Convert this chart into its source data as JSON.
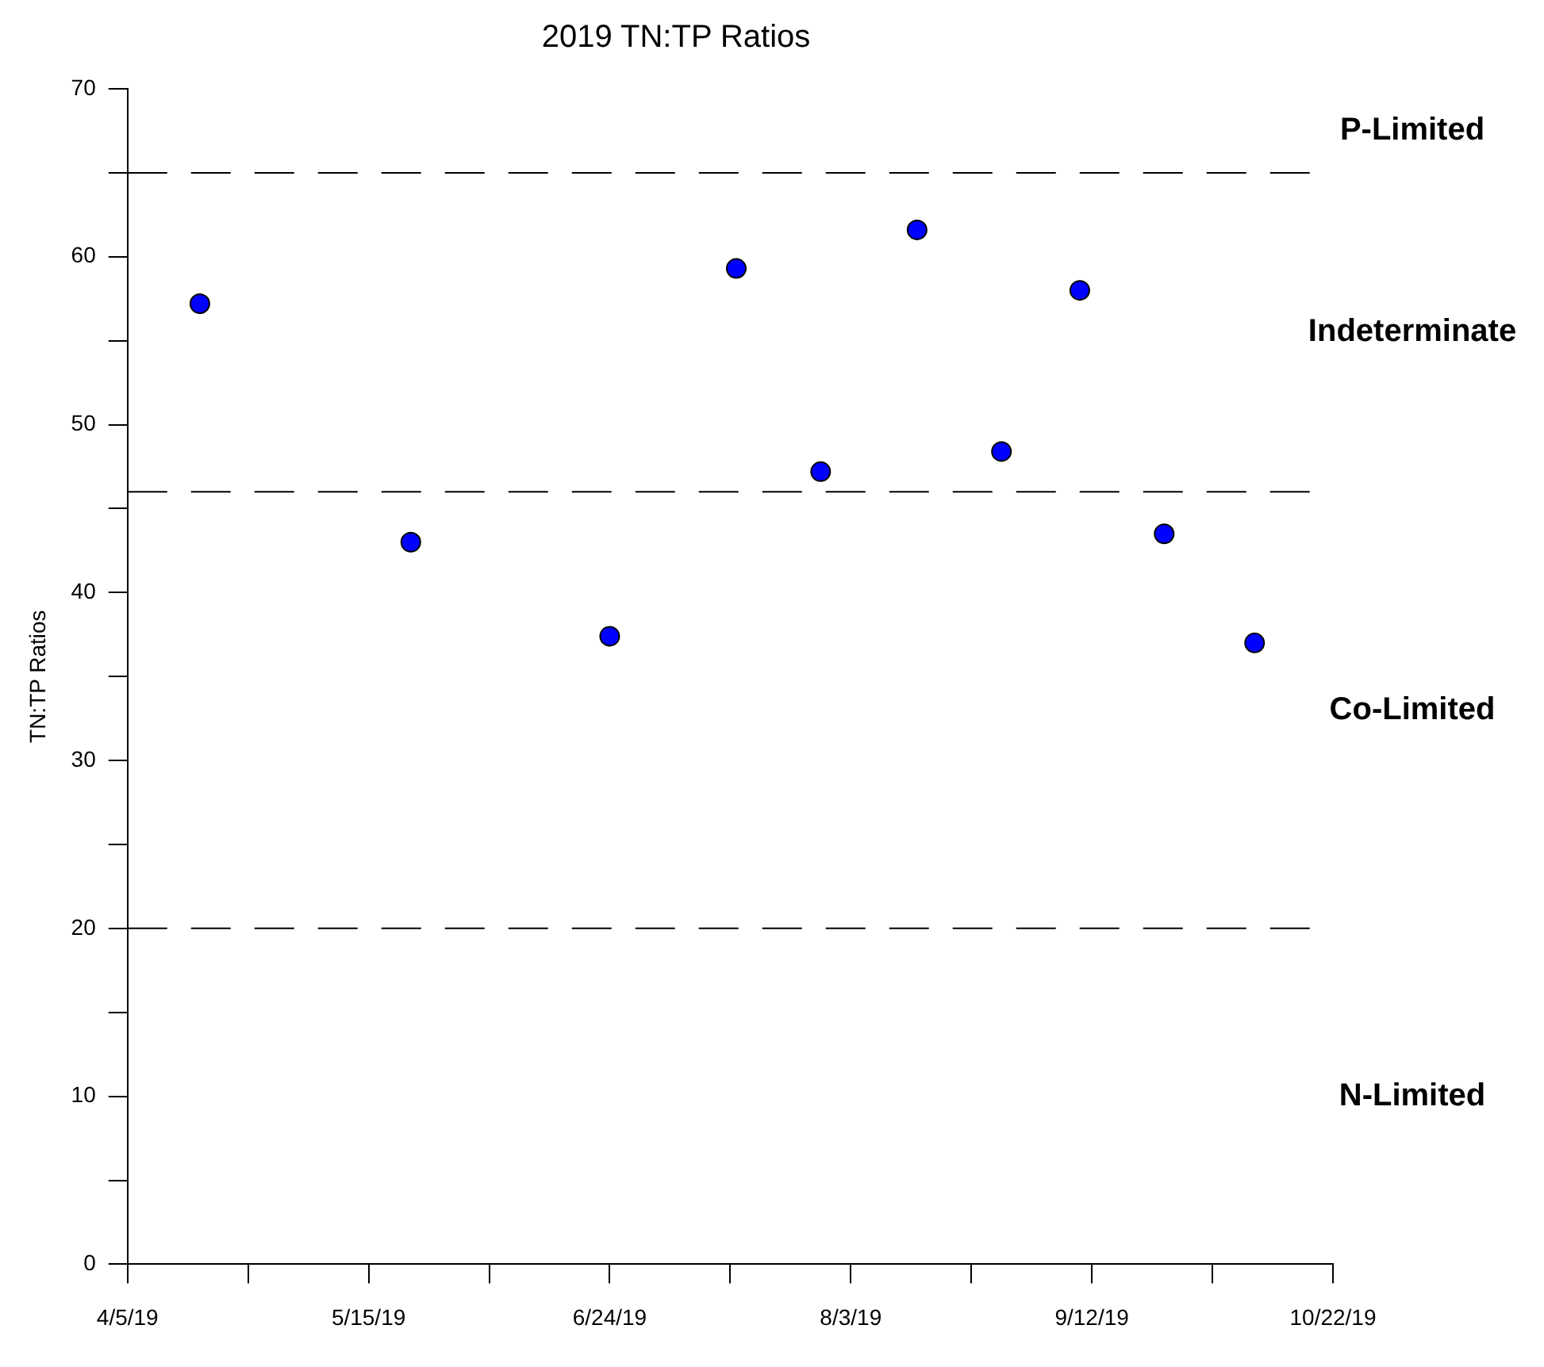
{
  "chart_data": {
    "type": "scatter",
    "title": "2019 TN:TP Ratios",
    "ylabel": "TN:TP Ratios",
    "x": [
      "2019-04-17",
      "2019-05-22",
      "2019-06-24",
      "2019-07-15",
      "2019-07-29",
      "2019-08-14",
      "2019-08-28",
      "2019-09-10",
      "2019-09-24",
      "2019-10-09"
    ],
    "series": [
      {
        "color": "#0000ff",
        "values": [
          57.2,
          43.0,
          37.4,
          59.3,
          47.2,
          61.6,
          48.4,
          58.0,
          43.5,
          37.0
        ]
      }
    ],
    "marker": "circle",
    "grid": false,
    "legend": false,
    "xlim": [
      "2019-04-05",
      "2019-10-22"
    ],
    "xticks": [
      {
        "value": "2019-04-05",
        "label": "4/5/19"
      },
      {
        "value": "2019-04-25",
        "label": null
      },
      {
        "value": "2019-05-15",
        "label": "5/15/19"
      },
      {
        "value": "2019-06-04",
        "label": null
      },
      {
        "value": "2019-06-24",
        "label": "6/24/19"
      },
      {
        "value": "2019-07-14",
        "label": null
      },
      {
        "value": "2019-08-03",
        "label": "8/3/19"
      },
      {
        "value": "2019-08-23",
        "label": null
      },
      {
        "value": "2019-09-12",
        "label": "9/12/19"
      },
      {
        "value": "2019-10-02",
        "label": null
      },
      {
        "value": "2019-10-22",
        "label": "10/22/19"
      }
    ],
    "ylim": [
      0,
      70
    ],
    "yticks": [
      0,
      {
        "value": 5,
        "label": null
      },
      10,
      {
        "value": 15,
        "label": null
      },
      20,
      {
        "value": 25,
        "label": null
      },
      30,
      {
        "value": 35,
        "label": null
      },
      40,
      {
        "value": 45,
        "label": null
      },
      50,
      {
        "value": 55,
        "label": null
      },
      60,
      {
        "value": 65,
        "label": null
      },
      70
    ],
    "ref_lines": [
      {
        "axis": "y",
        "value": 65,
        "color": "#000000",
        "line_style": "dashed"
      },
      {
        "axis": "y",
        "value": 46,
        "color": "#000000",
        "line_style": "dashed"
      },
      {
        "axis": "y",
        "value": 20,
        "color": "#000000",
        "line_style": "dashed"
      }
    ],
    "annotations": [
      "P-Limited",
      "Indeterminate",
      "Co-Limited",
      "N-Limited"
    ]
  }
}
